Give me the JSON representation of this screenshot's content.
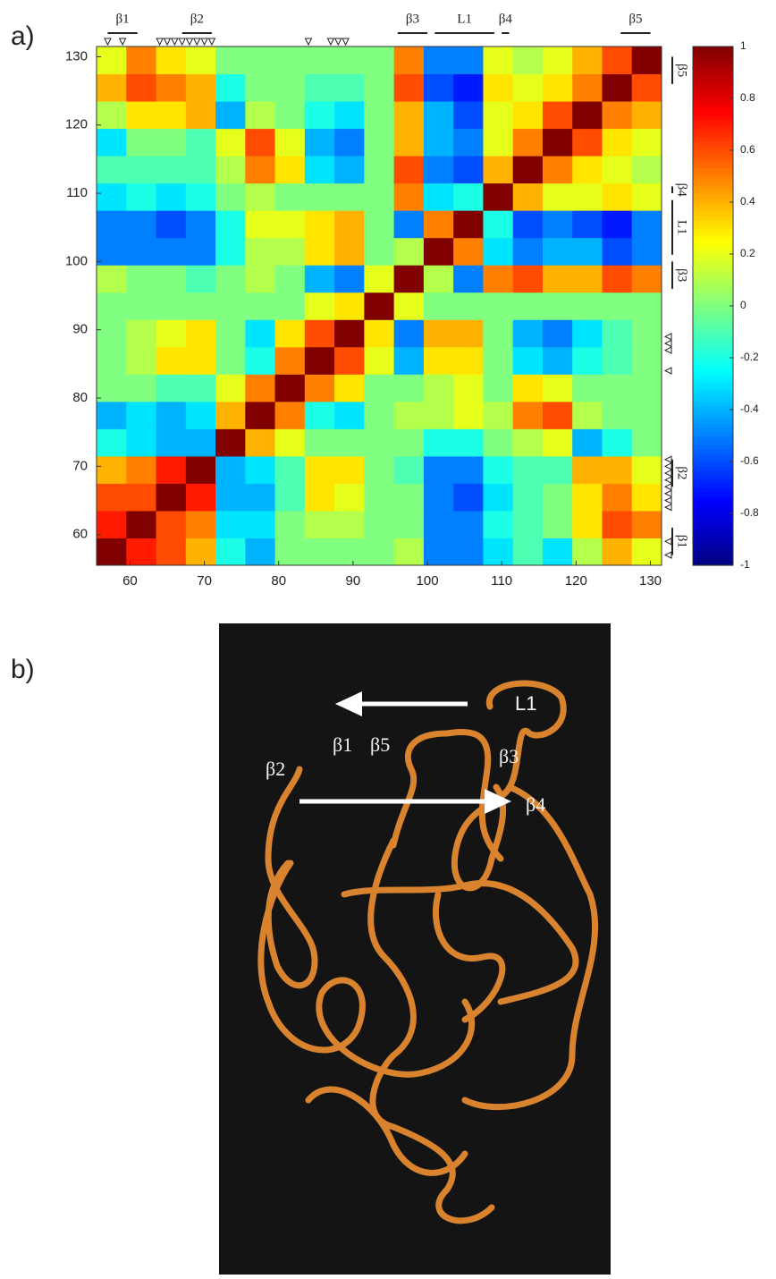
{
  "chart_data": {
    "type": "heatmap",
    "panel_label": "a)",
    "x_bins": [
      55.5,
      59.5,
      63.5,
      67.5,
      71.5,
      75.5,
      79.5,
      83.5,
      87.5,
      91.5,
      95.5,
      99.5,
      103.5,
      107.5,
      111.5,
      115.5,
      119.5,
      123.5,
      127.5,
      131.5
    ],
    "y_bins": [
      55.5,
      59.5,
      63.5,
      67.5,
      71.5,
      75.5,
      79.5,
      83.5,
      87.5,
      91.5,
      95.5,
      99.5,
      103.5,
      107.5,
      111.5,
      115.5,
      119.5,
      123.5,
      127.5,
      131.5
    ],
    "z": [
      [
        1,
        0.7,
        0.6,
        0.4,
        -0.2,
        -0.4,
        0,
        0,
        0,
        0,
        0.1,
        -0.5,
        -0.5,
        -0.3,
        -0.1,
        -0.3,
        0.1,
        0.4,
        0.2
      ],
      [
        0.7,
        1,
        0.6,
        0.5,
        -0.3,
        -0.3,
        0,
        0.1,
        0.1,
        0,
        0,
        -0.5,
        -0.5,
        -0.2,
        -0.1,
        0,
        0.3,
        0.6,
        0.5
      ],
      [
        0.6,
        0.6,
        1,
        0.7,
        -0.4,
        -0.4,
        -0.1,
        0.3,
        0.2,
        0,
        0,
        -0.5,
        -0.6,
        -0.3,
        -0.1,
        0,
        0.3,
        0.5,
        0.3
      ],
      [
        0.4,
        0.5,
        0.7,
        1,
        -0.4,
        -0.3,
        -0.1,
        0.3,
        0.3,
        0,
        -0.1,
        -0.5,
        -0.5,
        -0.2,
        -0.1,
        -0.1,
        0.4,
        0.4,
        0.2
      ],
      [
        -0.2,
        -0.3,
        -0.4,
        -0.4,
        1,
        0.4,
        0.2,
        0,
        0,
        0,
        0,
        -0.2,
        -0.2,
        0,
        0.1,
        0.2,
        -0.4,
        -0.2,
        0
      ],
      [
        -0.4,
        -0.3,
        -0.4,
        -0.3,
        0.4,
        1,
        0.5,
        -0.2,
        -0.3,
        0,
        0.1,
        0.1,
        0.2,
        0.1,
        0.5,
        0.6,
        0.1,
        0,
        0
      ],
      [
        0,
        0,
        -0.1,
        -0.1,
        0.2,
        0.5,
        1,
        0.5,
        0.3,
        0,
        0,
        0.1,
        0.2,
        0,
        0.3,
        0.2,
        0,
        0,
        0
      ],
      [
        0,
        0.1,
        0.3,
        0.3,
        0,
        -0.2,
        0.5,
        1,
        0.6,
        0.2,
        -0.4,
        0.3,
        0.3,
        0,
        -0.3,
        -0.4,
        -0.2,
        -0.1,
        0
      ],
      [
        0,
        0.1,
        0.2,
        0.3,
        0,
        -0.3,
        0.3,
        0.6,
        1,
        0.3,
        -0.5,
        0.4,
        0.4,
        0,
        -0.4,
        -0.5,
        -0.3,
        -0.1,
        0
      ],
      [
        0,
        0,
        0,
        0,
        0,
        0,
        0,
        0.2,
        0.3,
        1,
        0.2,
        0,
        0,
        0,
        0,
        0,
        0,
        0,
        0
      ],
      [
        0.1,
        0,
        0,
        -0.1,
        0,
        0.1,
        0,
        -0.4,
        -0.5,
        0.2,
        1,
        0.1,
        -0.5,
        0.5,
        0.6,
        0.4,
        0.4,
        0.6,
        0.5
      ],
      [
        -0.5,
        -0.5,
        -0.5,
        -0.5,
        -0.2,
        0.1,
        0.1,
        0.3,
        0.4,
        0,
        0.1,
        1,
        0.5,
        -0.3,
        -0.5,
        -0.4,
        -0.4,
        -0.6,
        -0.5
      ],
      [
        -0.5,
        -0.5,
        -0.6,
        -0.5,
        -0.2,
        0.2,
        0.2,
        0.3,
        0.4,
        0,
        -0.5,
        0.5,
        1,
        -0.2,
        -0.6,
        -0.5,
        -0.6,
        -0.7,
        -0.5
      ],
      [
        -0.3,
        -0.2,
        -0.3,
        -0.2,
        0,
        0.1,
        0,
        0,
        0,
        0,
        0.5,
        -0.3,
        -0.2,
        1,
        0.4,
        0.2,
        0.2,
        0.3,
        0.2
      ],
      [
        -0.1,
        -0.1,
        -0.1,
        -0.1,
        0.1,
        0.5,
        0.3,
        -0.3,
        -0.4,
        0,
        0.6,
        -0.5,
        -0.6,
        0.4,
        1,
        0.5,
        0.3,
        0.2,
        0.1
      ],
      [
        -0.3,
        0,
        0,
        -0.1,
        0.2,
        0.6,
        0.2,
        -0.4,
        -0.5,
        0,
        0.4,
        -0.4,
        -0.5,
        0.2,
        0.5,
        1,
        0.6,
        0.3,
        0.2
      ],
      [
        0.1,
        0.3,
        0.3,
        0.4,
        -0.4,
        0.1,
        0,
        -0.2,
        -0.3,
        0,
        0.4,
        -0.4,
        -0.6,
        0.2,
        0.3,
        0.6,
        1,
        0.5,
        0.4
      ],
      [
        0.4,
        0.6,
        0.5,
        0.4,
        -0.2,
        0,
        0,
        -0.1,
        -0.1,
        0,
        0.6,
        -0.6,
        -0.7,
        0.3,
        0.2,
        0.3,
        0.5,
        1,
        0.6
      ],
      [
        0.2,
        0.5,
        0.3,
        0.2,
        0,
        0,
        0,
        0,
        0,
        0,
        0.5,
        -0.5,
        -0.5,
        0.2,
        0.1,
        0.2,
        0.4,
        0.6,
        1
      ]
    ],
    "colormap": "jet",
    "xlim": [
      55.5,
      131.5
    ],
    "ylim": [
      55.5,
      131.5
    ],
    "xticks": [
      60,
      70,
      80,
      90,
      100,
      110,
      120,
      130
    ],
    "yticks": [
      60,
      70,
      80,
      90,
      100,
      110,
      120,
      130
    ],
    "clim": [
      -1,
      1
    ],
    "colorbar_ticks": [
      -1,
      -0.8,
      -0.6,
      -0.4,
      -0.2,
      0,
      0.2,
      0.4,
      0.6,
      0.8,
      1
    ],
    "structure": [
      {
        "label": "β1",
        "start": 57,
        "end": 61
      },
      {
        "label": "β2",
        "start": 67,
        "end": 71
      },
      {
        "label": "β3",
        "start": 96,
        "end": 100
      },
      {
        "label": "L1",
        "start": 101,
        "end": 109
      },
      {
        "label": "β4",
        "start": 110,
        "end": 111
      },
      {
        "label": "β5",
        "start": 126,
        "end": 130
      }
    ],
    "markers": [
      57,
      59,
      64,
      65,
      66,
      67,
      68,
      69,
      70,
      71,
      84,
      87,
      88,
      89
    ]
  },
  "image_panel": {
    "panel_label": "b)",
    "labels": [
      "L1",
      "β1",
      "β5",
      "β2",
      "β3",
      "β4"
    ]
  }
}
